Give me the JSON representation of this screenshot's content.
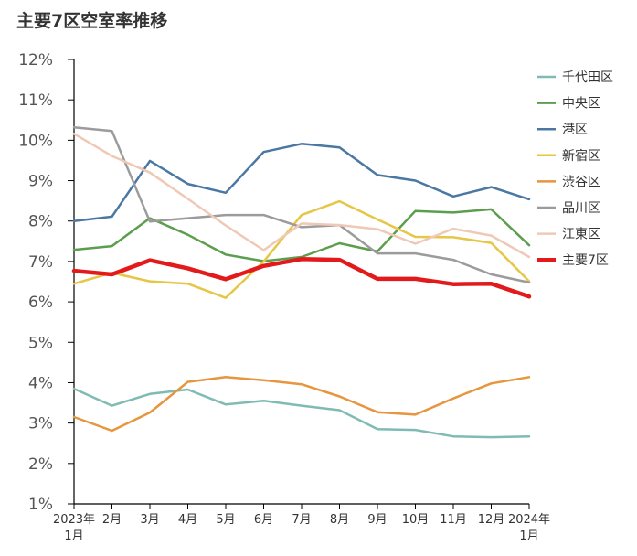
{
  "chart_data": {
    "type": "line",
    "title": "主要7区空室率推移",
    "xlabel": "",
    "ylabel": "",
    "ylim": [
      1,
      12
    ],
    "y_ticks": [
      "1%",
      "2%",
      "3%",
      "4%",
      "5%",
      "6%",
      "7%",
      "8%",
      "9%",
      "10%",
      "11%",
      "12%"
    ],
    "categories": [
      [
        "2023年",
        "1月"
      ],
      [
        "2月"
      ],
      [
        "3月"
      ],
      [
        "4月"
      ],
      [
        "5月"
      ],
      [
        "6月"
      ],
      [
        "7月"
      ],
      [
        "8月"
      ],
      [
        "9月"
      ],
      [
        "10月"
      ],
      [
        "11月"
      ],
      [
        "12月"
      ],
      [
        "2024年",
        "1月"
      ]
    ],
    "legend_position": "right",
    "series": [
      {
        "name": "千代田区",
        "color": "#7fbbb3",
        "width": 2.5,
        "values": [
          3.85,
          3.43,
          3.72,
          3.83,
          3.46,
          3.55,
          3.43,
          3.32,
          2.85,
          2.83,
          2.67,
          2.65,
          2.67
        ]
      },
      {
        "name": "中央区",
        "color": "#5c9e4d",
        "width": 2.5,
        "values": [
          7.29,
          7.38,
          8.07,
          7.66,
          7.17,
          7.01,
          7.11,
          7.45,
          7.25,
          8.25,
          8.21,
          8.29,
          7.4
        ]
      },
      {
        "name": "港区",
        "color": "#4b77a3",
        "width": 2.5,
        "values": [
          8.0,
          8.11,
          9.49,
          8.92,
          8.7,
          9.71,
          9.91,
          9.82,
          9.14,
          9.0,
          8.61,
          8.84,
          8.54
        ]
      },
      {
        "name": "新宿区",
        "color": "#e6c645",
        "width": 2.5,
        "values": [
          6.45,
          6.72,
          6.51,
          6.45,
          6.1,
          7.0,
          8.15,
          8.49,
          8.04,
          7.61,
          7.6,
          7.46,
          6.51
        ]
      },
      {
        "name": "渋谷区",
        "color": "#e5963e",
        "width": 2.5,
        "values": [
          3.15,
          2.81,
          3.26,
          4.02,
          4.14,
          4.06,
          3.96,
          3.66,
          3.27,
          3.21,
          3.61,
          3.98,
          4.14
        ]
      },
      {
        "name": "品川区",
        "color": "#9b9b9b",
        "width": 2.5,
        "values": [
          10.32,
          10.23,
          7.99,
          8.07,
          8.15,
          8.15,
          7.85,
          7.9,
          7.2,
          7.2,
          7.04,
          6.68,
          6.48
        ]
      },
      {
        "name": "江東区",
        "color": "#efc9b6",
        "width": 2.5,
        "values": [
          10.16,
          9.61,
          9.2,
          8.55,
          7.89,
          7.28,
          7.94,
          7.9,
          7.8,
          7.44,
          7.81,
          7.64,
          7.11
        ]
      },
      {
        "name": "主要7区",
        "color": "#e31a1c",
        "width": 4.5,
        "values": [
          6.77,
          6.68,
          7.03,
          6.83,
          6.56,
          6.89,
          7.06,
          7.04,
          6.57,
          6.57,
          6.44,
          6.45,
          6.13
        ]
      }
    ]
  }
}
